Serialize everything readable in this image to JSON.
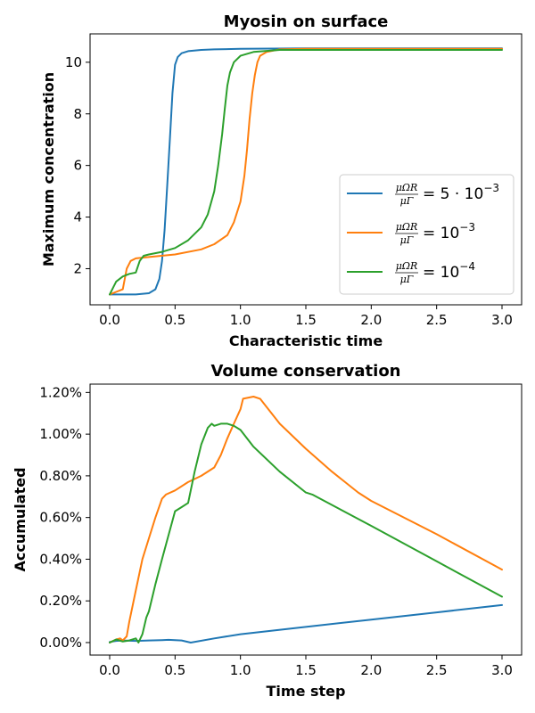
{
  "chart_data": [
    {
      "type": "line",
      "title": "Myosin on surface",
      "xlabel": "Characteristic time",
      "ylabel": "Maximum concentration",
      "xlim": [
        -0.15,
        3.15
      ],
      "ylim": [
        0.6,
        11.1
      ],
      "xticks": [
        0.0,
        0.5,
        1.0,
        1.5,
        2.0,
        2.5,
        3.0
      ],
      "xtick_labels": [
        "0.0",
        "0.5",
        "1.0",
        "1.5",
        "2.0",
        "2.5",
        "3.0"
      ],
      "yticks": [
        2,
        4,
        6,
        8,
        10
      ],
      "ytick_labels": [
        "2",
        "4",
        "6",
        "8",
        "10"
      ],
      "legend_position": "center-right",
      "series": [
        {
          "name": "5 · 10⁻³",
          "legend": {
            "frac_num": "μΩR",
            "frac_den": "μΓ",
            "eq": "= 5 · 10",
            "exp": "−3"
          },
          "color": "#1f77b4",
          "x": [
            0.0,
            0.1,
            0.2,
            0.3,
            0.35,
            0.38,
            0.4,
            0.42,
            0.44,
            0.46,
            0.48,
            0.5,
            0.52,
            0.55,
            0.6,
            0.7,
            0.8,
            1.0,
            1.5,
            3.0
          ],
          "y": [
            1.0,
            1.0,
            1.0,
            1.05,
            1.2,
            1.6,
            2.3,
            3.5,
            5.2,
            7.0,
            8.8,
            9.9,
            10.2,
            10.35,
            10.43,
            10.48,
            10.5,
            10.52,
            10.54,
            10.54
          ]
        },
        {
          "name": "10⁻³",
          "legend": {
            "frac_num": "μΩR",
            "frac_den": "μΓ",
            "eq": "= 10",
            "exp": "−3"
          },
          "color": "#ff7f0e",
          "x": [
            0.0,
            0.05,
            0.1,
            0.13,
            0.16,
            0.2,
            0.3,
            0.5,
            0.7,
            0.8,
            0.9,
            0.95,
            1.0,
            1.03,
            1.05,
            1.07,
            1.09,
            1.11,
            1.13,
            1.15,
            1.2,
            1.3,
            1.5,
            3.0
          ],
          "y": [
            1.0,
            1.1,
            1.2,
            2.0,
            2.3,
            2.4,
            2.45,
            2.55,
            2.75,
            2.95,
            3.3,
            3.8,
            4.6,
            5.6,
            6.6,
            7.8,
            8.8,
            9.5,
            10.0,
            10.25,
            10.4,
            10.5,
            10.52,
            10.52
          ]
        },
        {
          "name": "10⁻⁴",
          "legend": {
            "frac_num": "μΩR",
            "frac_den": "μΓ",
            "eq": "= 10",
            "exp": "−4"
          },
          "color": "#2ca02c",
          "x": [
            0.0,
            0.05,
            0.1,
            0.15,
            0.2,
            0.23,
            0.26,
            0.3,
            0.4,
            0.5,
            0.6,
            0.7,
            0.75,
            0.8,
            0.83,
            0.86,
            0.88,
            0.9,
            0.92,
            0.95,
            1.0,
            1.1,
            1.3,
            3.0
          ],
          "y": [
            1.0,
            1.5,
            1.7,
            1.8,
            1.85,
            2.3,
            2.5,
            2.55,
            2.65,
            2.8,
            3.1,
            3.6,
            4.1,
            5.0,
            6.0,
            7.2,
            8.2,
            9.1,
            9.6,
            10.0,
            10.25,
            10.4,
            10.48,
            10.48
          ]
        }
      ]
    },
    {
      "type": "line",
      "title": "Volume conservation",
      "xlabel": "Time step",
      "ylabel": "Accumulated",
      "xlim": [
        -0.15,
        3.15
      ],
      "ylim": [
        -0.0006,
        0.0124
      ],
      "xticks": [
        0.0,
        0.5,
        1.0,
        1.5,
        2.0,
        2.5,
        3.0
      ],
      "xtick_labels": [
        "0.0",
        "0.5",
        "1.0",
        "1.5",
        "2.0",
        "2.5",
        "3.0"
      ],
      "yticks": [
        0.0,
        0.002,
        0.004,
        0.006,
        0.008,
        0.01,
        0.012
      ],
      "ytick_labels": [
        "0.00%",
        "0.20%",
        "0.40%",
        "0.60%",
        "0.80%",
        "1.00%",
        "1.20%"
      ],
      "series": [
        {
          "name": "5 · 10⁻³",
          "color": "#1f77b4",
          "x": [
            0.0,
            0.05,
            0.1,
            0.2,
            0.3,
            0.4,
            0.45,
            0.5,
            0.55,
            0.62,
            0.8,
            1.0,
            1.5,
            2.0,
            2.5,
            3.0
          ],
          "y": [
            3e-05,
            8e-05,
            0.0001,
            8e-05,
            0.0001,
            0.00012,
            0.00013,
            0.00012,
            0.0001,
            0.0,
            0.0002,
            0.0004,
            0.00075,
            0.0011,
            0.00145,
            0.0018
          ]
        },
        {
          "name": "10⁻³",
          "color": "#ff7f0e",
          "x": [
            0.0,
            0.05,
            0.08,
            0.1,
            0.13,
            0.15,
            0.2,
            0.25,
            0.3,
            0.35,
            0.4,
            0.43,
            0.5,
            0.6,
            0.7,
            0.8,
            0.85,
            0.9,
            0.95,
            1.0,
            1.02,
            1.1,
            1.15,
            1.3,
            1.5,
            1.7,
            1.9,
            2.0,
            2.5,
            3.0
          ],
          "y": [
            0.0,
            0.00015,
            0.0002,
            0.0001,
            0.0003,
            0.001,
            0.0025,
            0.004,
            0.005,
            0.006,
            0.0069,
            0.0071,
            0.0073,
            0.0077,
            0.008,
            0.0084,
            0.009,
            0.0098,
            0.0105,
            0.0112,
            0.0117,
            0.0118,
            0.0117,
            0.0105,
            0.0093,
            0.0082,
            0.0072,
            0.0068,
            0.0052,
            0.0035
          ]
        },
        {
          "name": "10⁻⁴",
          "color": "#2ca02c",
          "x": [
            0.0,
            0.05,
            0.1,
            0.15,
            0.2,
            0.22,
            0.25,
            0.28,
            0.3,
            0.35,
            0.4,
            0.5,
            0.55,
            0.6,
            0.65,
            0.7,
            0.75,
            0.78,
            0.8,
            0.85,
            0.9,
            0.95,
            1.0,
            1.1,
            1.3,
            1.5,
            1.55,
            2.0,
            2.5,
            3.0
          ],
          "y": [
            0.0,
            0.00015,
            5e-05,
            0.0001,
            0.0002,
            0.0,
            0.0004,
            0.0012,
            0.0015,
            0.0028,
            0.004,
            0.0063,
            0.0065,
            0.0067,
            0.0082,
            0.0095,
            0.0103,
            0.0105,
            0.0104,
            0.0105,
            0.0105,
            0.0104,
            0.0102,
            0.0094,
            0.0082,
            0.0072,
            0.0071,
            0.0056,
            0.0039,
            0.0022
          ]
        }
      ]
    }
  ]
}
